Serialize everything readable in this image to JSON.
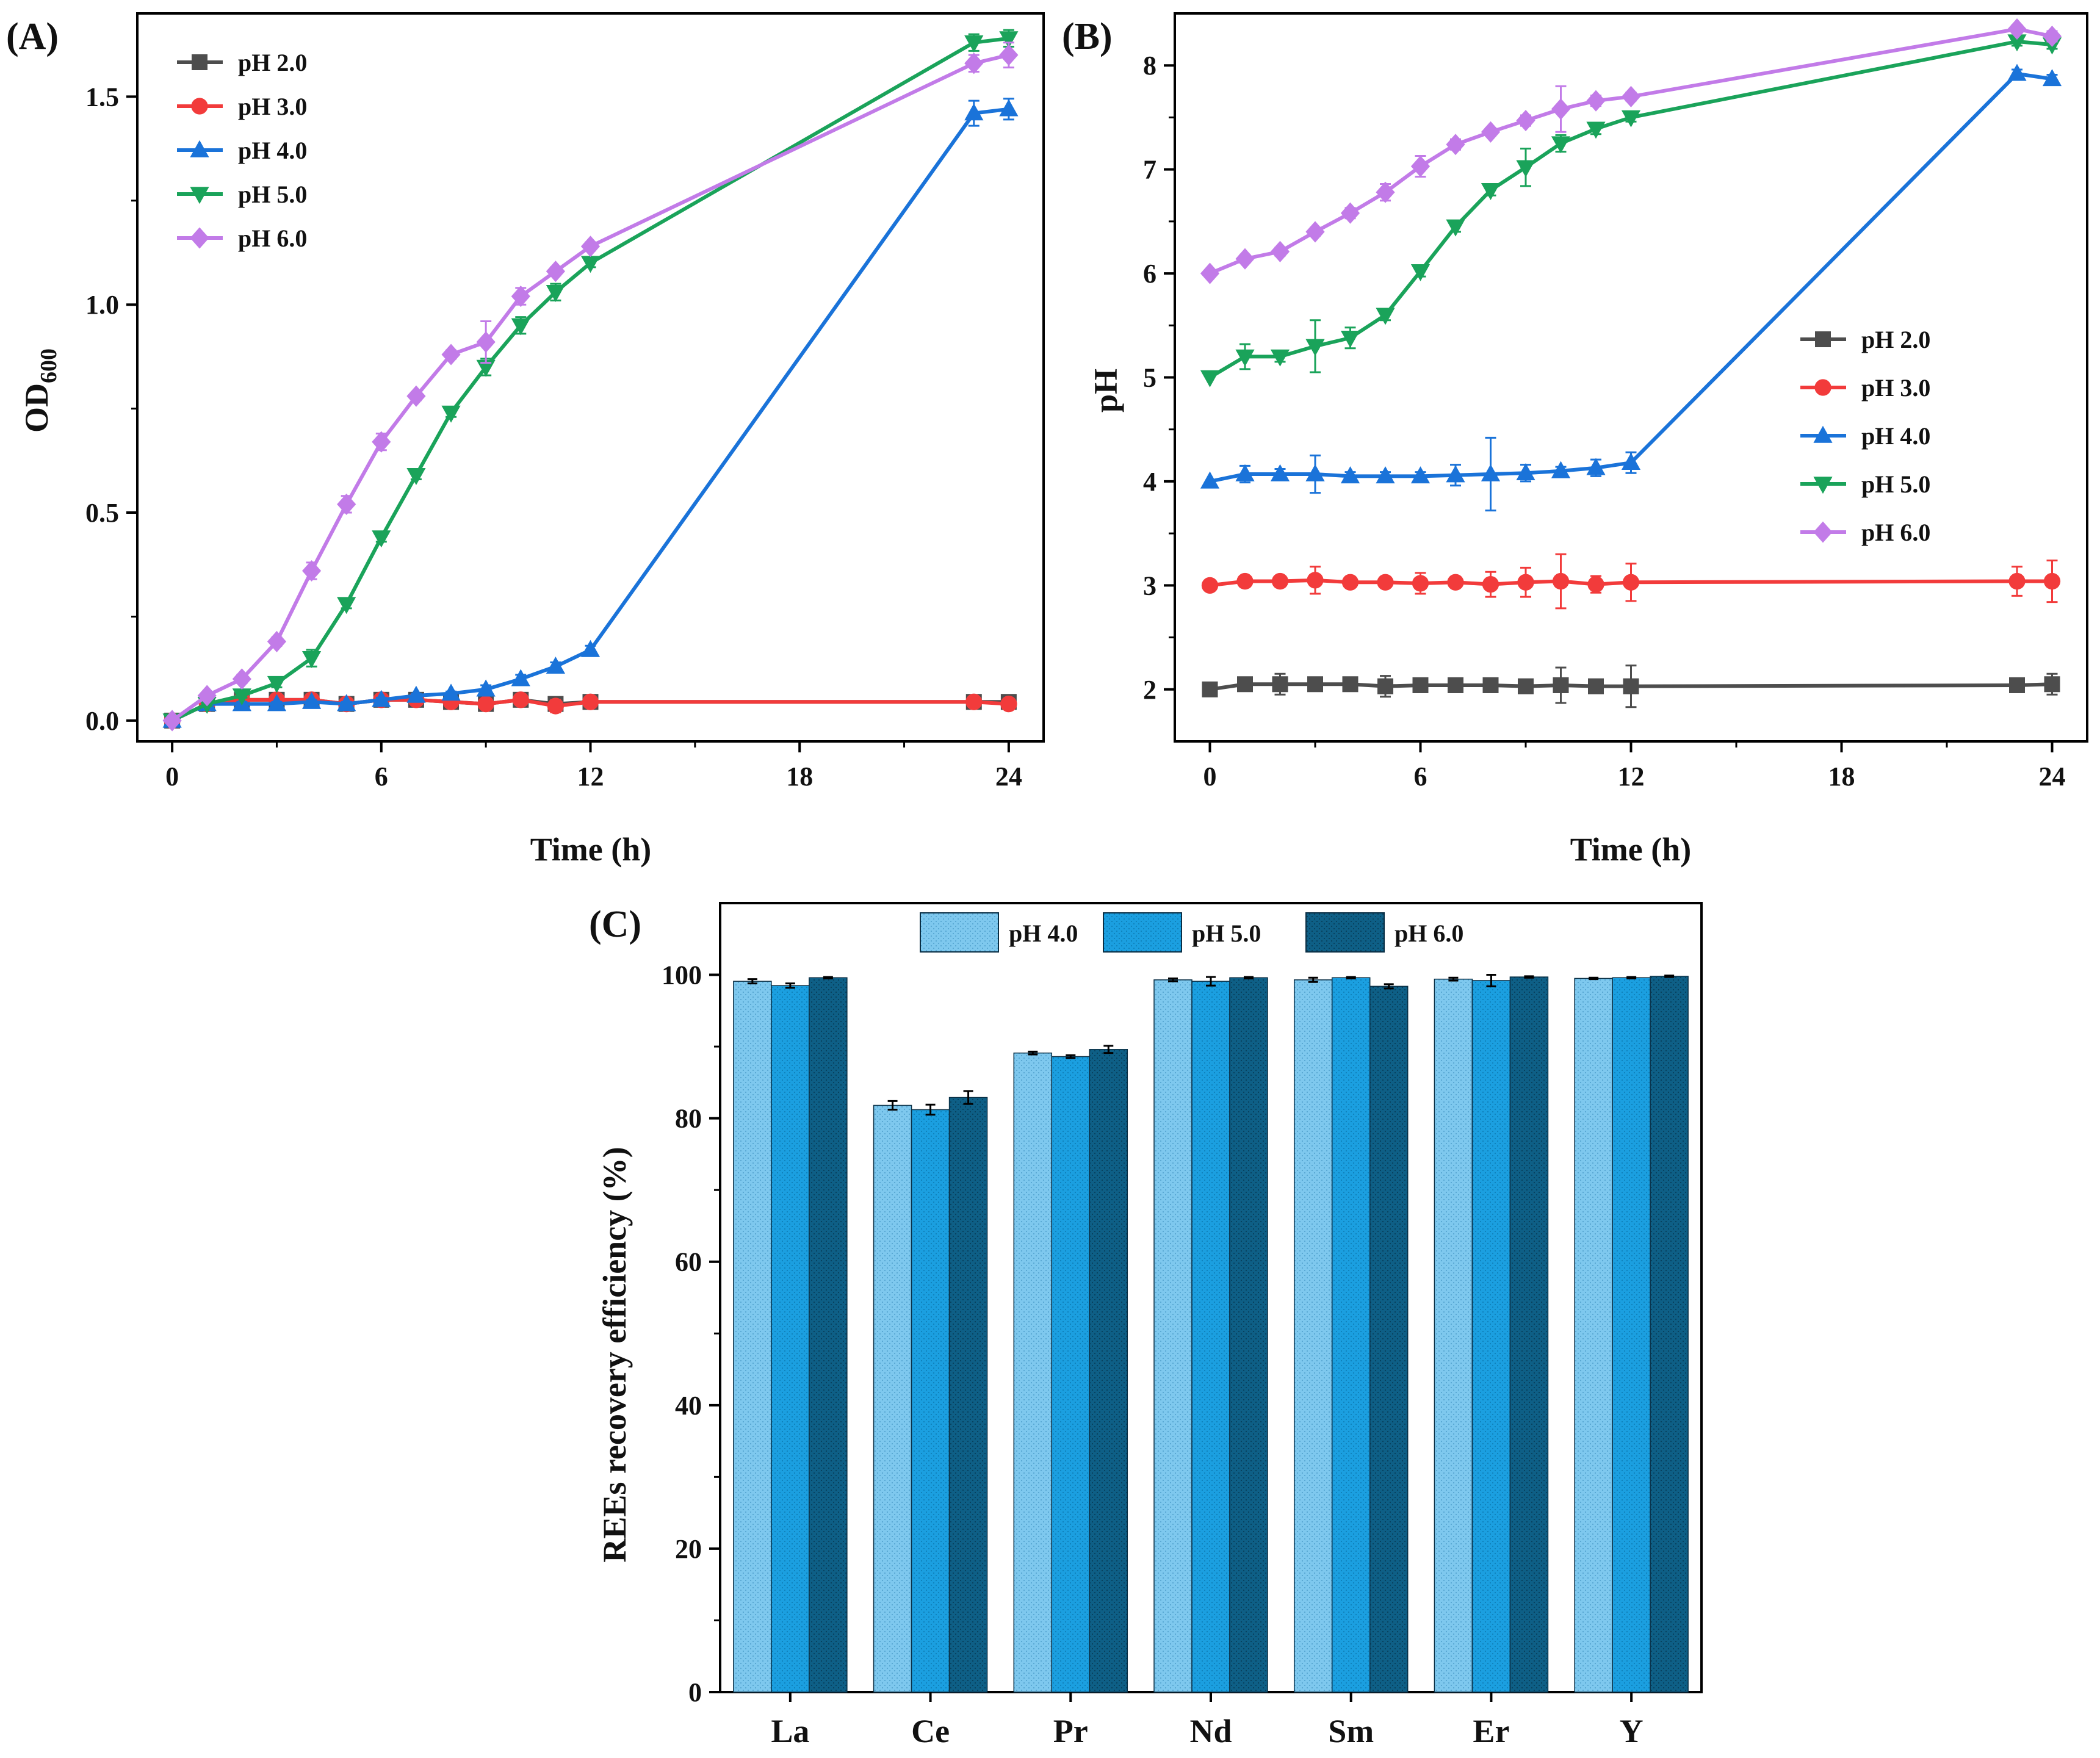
{
  "figure": {
    "panels": [
      "(A)",
      "(B)",
      "(C)"
    ]
  },
  "colors": {
    "pH 2.0": "#4d4d4d",
    "pH 3.0": "#f23b3b",
    "pH 4.0": "#1a73d9",
    "pH 5.0": "#1aa35a",
    "pH 6.0": "#c27be8",
    "bar_pH4": "#7ec8ee",
    "bar_pH5": "#1b9fe0",
    "bar_pH6": "#0e5f86"
  },
  "chart_data": [
    {
      "id": "A",
      "type": "line",
      "panel_label": "(A)",
      "title": "",
      "xlabel": "Time (h)",
      "ylabel": "OD",
      "ylabel_sub": "600",
      "xlim": [
        -1,
        25
      ],
      "ylim": [
        -0.05,
        1.7
      ],
      "xticks": [
        0,
        6,
        12,
        18,
        24
      ],
      "xtick_labels": [
        "0",
        "6",
        "12",
        "18",
        "24"
      ],
      "yticks": [
        0,
        0.5,
        1.0,
        1.5
      ],
      "ytick_labels": [
        "0.0",
        "0.5",
        "1.0",
        "1.5"
      ],
      "legend": "top-left",
      "x": [
        0,
        1,
        2,
        3,
        4,
        5,
        6,
        7,
        8,
        9,
        10,
        11,
        12,
        23,
        24
      ],
      "series": [
        {
          "name": "pH 2.0",
          "marker": "square",
          "values": [
            0,
            0.04,
            0.05,
            0.05,
            0.05,
            0.04,
            0.05,
            0.05,
            0.045,
            0.04,
            0.05,
            0.04,
            0.045,
            0.045,
            0.045
          ],
          "errors": [
            0,
            0.005,
            0.005,
            0.005,
            0.005,
            0.005,
            0.005,
            0.005,
            0.005,
            0.005,
            0.01,
            0.015,
            0.01,
            0.01,
            0.01
          ]
        },
        {
          "name": "pH 3.0",
          "marker": "circle",
          "values": [
            0,
            0.04,
            0.05,
            0.05,
            0.05,
            0.04,
            0.05,
            0.05,
            0.045,
            0.04,
            0.05,
            0.035,
            0.045,
            0.045,
            0.04
          ],
          "errors": [
            0,
            0.005,
            0.005,
            0.005,
            0.005,
            0.005,
            0.005,
            0.005,
            0.005,
            0.005,
            0.01,
            0.015,
            0.01,
            0.01,
            0.01
          ]
        },
        {
          "name": "pH 4.0",
          "marker": "triangle-up",
          "values": [
            0,
            0.04,
            0.04,
            0.04,
            0.045,
            0.04,
            0.05,
            0.06,
            0.065,
            0.075,
            0.1,
            0.13,
            0.17,
            1.46,
            1.47
          ],
          "errors": [
            0,
            0.005,
            0.005,
            0.005,
            0.005,
            0.005,
            0.005,
            0.005,
            0.005,
            0.01,
            0.01,
            0.01,
            0.01,
            0.03,
            0.025
          ]
        },
        {
          "name": "pH 5.0",
          "marker": "triangle-down",
          "values": [
            0,
            0.04,
            0.06,
            0.09,
            0.15,
            0.28,
            0.44,
            0.59,
            0.74,
            0.85,
            0.95,
            1.03,
            1.1,
            1.63,
            1.64
          ],
          "errors": [
            0,
            0.005,
            0.005,
            0.01,
            0.02,
            0.01,
            0.01,
            0.01,
            0.01,
            0.02,
            0.02,
            0.02,
            0.01,
            0.02,
            0.02
          ]
        },
        {
          "name": "pH 6.0",
          "marker": "diamond",
          "values": [
            0,
            0.06,
            0.1,
            0.19,
            0.36,
            0.52,
            0.67,
            0.78,
            0.88,
            0.91,
            1.02,
            1.08,
            1.14,
            1.58,
            1.6
          ],
          "errors": [
            0,
            0.005,
            0.01,
            0.01,
            0.02,
            0.02,
            0.02,
            0.01,
            0.01,
            0.05,
            0.02,
            0.01,
            0.01,
            0.02,
            0.03
          ]
        }
      ]
    },
    {
      "id": "B",
      "type": "line",
      "panel_label": "(B)",
      "title": "",
      "xlabel": "Time (h)",
      "ylabel": "pH",
      "xlim": [
        -1,
        25
      ],
      "ylim": [
        1.5,
        8.5
      ],
      "xticks": [
        0,
        6,
        12,
        18,
        24
      ],
      "xtick_labels": [
        "0",
        "6",
        "12",
        "18",
        "24"
      ],
      "yticks": [
        2,
        3,
        4,
        5,
        6,
        7,
        8
      ],
      "ytick_labels": [
        "2",
        "3",
        "4",
        "5",
        "6",
        "7",
        "8"
      ],
      "legend": "center-right",
      "x": [
        0,
        1,
        2,
        3,
        4,
        5,
        6,
        7,
        8,
        9,
        10,
        11,
        12,
        23,
        24
      ],
      "series": [
        {
          "name": "pH 2.0",
          "marker": "square",
          "values": [
            2.0,
            2.05,
            2.05,
            2.05,
            2.05,
            2.03,
            2.04,
            2.04,
            2.04,
            2.03,
            2.04,
            2.03,
            2.03,
            2.04,
            2.05
          ],
          "errors": [
            0,
            0.05,
            0.1,
            0.05,
            0.05,
            0.1,
            0.05,
            0.05,
            0.05,
            0.05,
            0.17,
            0.05,
            0.2,
            0.05,
            0.1
          ]
        },
        {
          "name": "pH 3.0",
          "marker": "circle",
          "values": [
            3.0,
            3.04,
            3.04,
            3.05,
            3.03,
            3.03,
            3.02,
            3.03,
            3.01,
            3.03,
            3.04,
            3.01,
            3.03,
            3.04,
            3.04
          ],
          "errors": [
            0,
            0.04,
            0.04,
            0.13,
            0.04,
            0.04,
            0.1,
            0.04,
            0.12,
            0.14,
            0.26,
            0.08,
            0.18,
            0.14,
            0.2
          ]
        },
        {
          "name": "pH 4.0",
          "marker": "triangle-up",
          "values": [
            4.0,
            4.07,
            4.07,
            4.07,
            4.05,
            4.05,
            4.05,
            4.06,
            4.07,
            4.08,
            4.1,
            4.13,
            4.18,
            7.92,
            7.87
          ],
          "errors": [
            0,
            0.08,
            0.05,
            0.18,
            0.04,
            0.04,
            0.04,
            0.1,
            0.35,
            0.08,
            0.04,
            0.08,
            0.1,
            0.04,
            0.04
          ]
        },
        {
          "name": "pH 5.0",
          "marker": "triangle-down",
          "values": [
            5.0,
            5.2,
            5.2,
            5.3,
            5.38,
            5.6,
            6.02,
            6.45,
            6.8,
            7.02,
            7.25,
            7.39,
            7.5,
            8.23,
            8.2
          ],
          "errors": [
            0,
            0.12,
            0.05,
            0.25,
            0.1,
            0.05,
            0.05,
            0.05,
            0.05,
            0.18,
            0.08,
            0.05,
            0.04,
            0.04,
            0.04
          ]
        },
        {
          "name": "pH 6.0",
          "marker": "diamond",
          "values": [
            6.0,
            6.14,
            6.21,
            6.4,
            6.58,
            6.78,
            7.03,
            7.24,
            7.36,
            7.47,
            7.58,
            7.66,
            7.7,
            8.35,
            8.28
          ],
          "errors": [
            0,
            0.04,
            0.04,
            0.04,
            0.05,
            0.08,
            0.1,
            0.05,
            0.04,
            0.05,
            0.22,
            0.05,
            0.04,
            0.04,
            0.05
          ]
        }
      ]
    },
    {
      "id": "C",
      "type": "bar",
      "panel_label": "(C)",
      "title": "",
      "xlabel": "",
      "ylabel": "REEs recovery efficiency (%)",
      "ylim": [
        0,
        110
      ],
      "yticks": [
        0,
        20,
        40,
        60,
        80,
        100
      ],
      "ytick_labels": [
        "0",
        "20",
        "40",
        "60",
        "80",
        "100"
      ],
      "legend": "top-center",
      "categories": [
        "La",
        "Ce",
        "Pr",
        "Nd",
        "Sm",
        "Er",
        "Y"
      ],
      "series": [
        {
          "name": "pH 4.0",
          "values": [
            99.1,
            81.8,
            89.1,
            99.3,
            99.3,
            99.4,
            99.5
          ],
          "errors": [
            0.3,
            0.6,
            0.2,
            0.2,
            0.3,
            0.2,
            0.1
          ]
        },
        {
          "name": "pH 5.0",
          "values": [
            98.5,
            81.2,
            88.6,
            99.1,
            99.6,
            99.2,
            99.6
          ],
          "errors": [
            0.3,
            0.7,
            0.2,
            0.6,
            0.1,
            0.8,
            0.1
          ]
        },
        {
          "name": "pH 6.0",
          "values": [
            99.6,
            82.9,
            89.6,
            99.6,
            98.4,
            99.7,
            99.8
          ],
          "errors": [
            0.1,
            0.9,
            0.5,
            0.1,
            0.3,
            0.1,
            0.1
          ]
        }
      ]
    }
  ]
}
